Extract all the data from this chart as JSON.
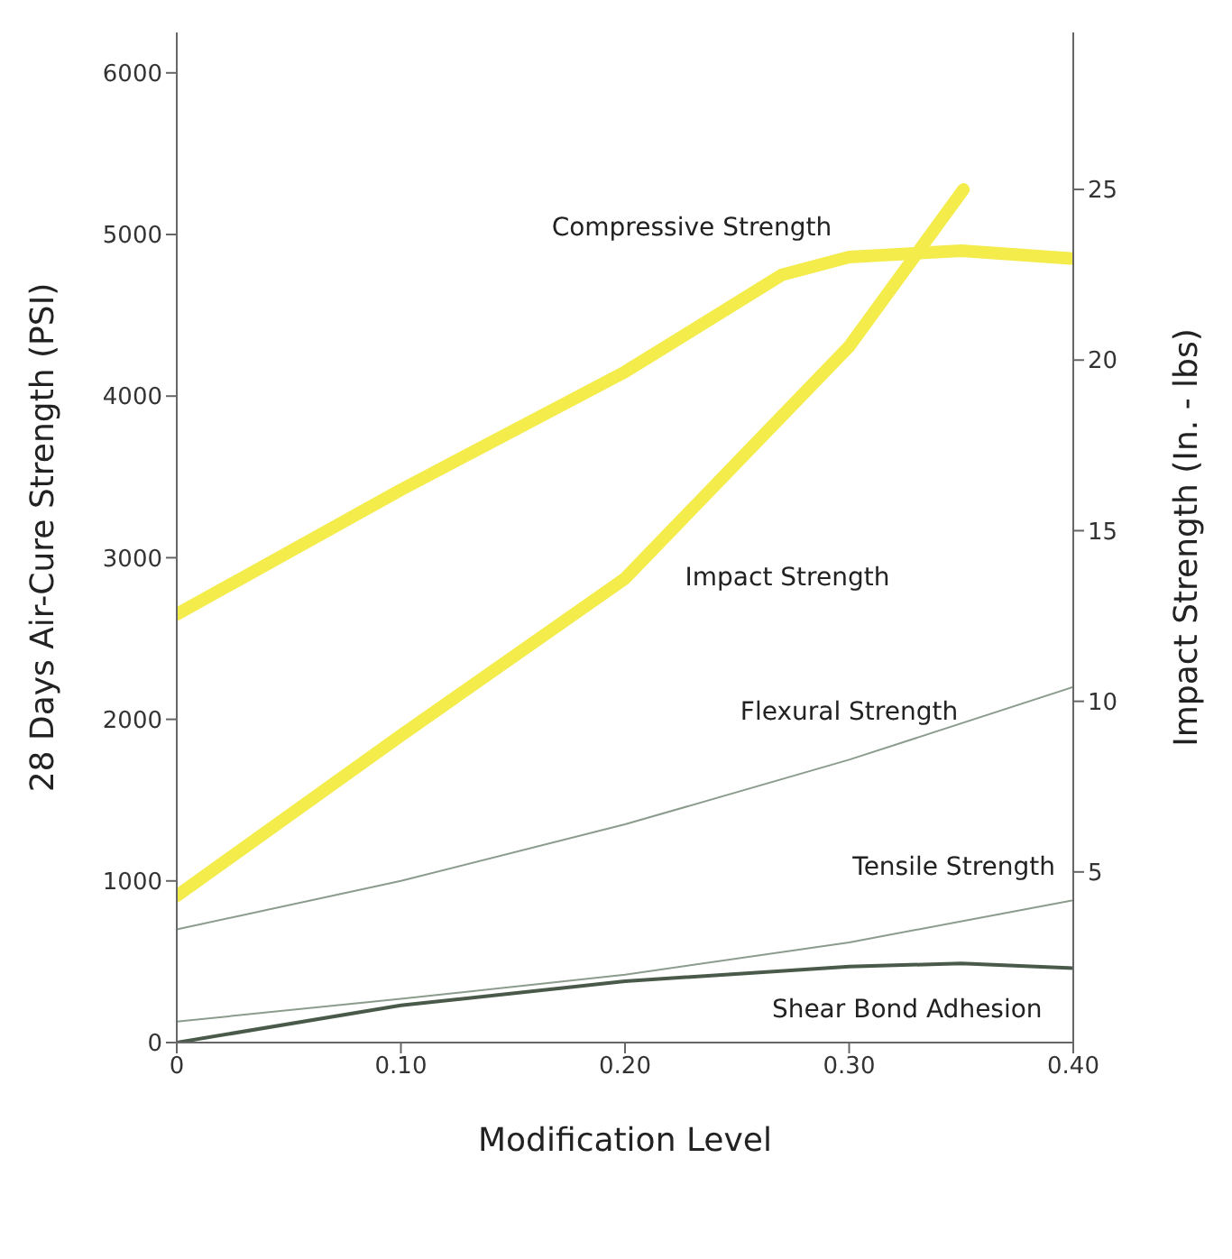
{
  "chart_data": {
    "type": "line",
    "xlabel": "Modification Level",
    "ylabel": "28 Days Air-Cure Strength (PSI)",
    "y2label": "Impact Strength (In. - lbs)",
    "xlim": [
      0,
      0.4
    ],
    "xticks": [
      0,
      {
        "value": 0.1,
        "label": "0.10"
      },
      {
        "value": 0.2,
        "label": "0.20"
      },
      {
        "value": 0.3,
        "label": "0.30"
      },
      {
        "value": 0.4,
        "label": "0.40"
      }
    ],
    "ylim": [
      0,
      6250
    ],
    "yticks": [
      0,
      1000,
      2000,
      3000,
      4000,
      5000,
      6000
    ],
    "y2lim": [
      0,
      29.6
    ],
    "y2ticks": [
      5,
      10,
      15,
      20,
      25
    ],
    "marker": "none",
    "line_style": "solid",
    "series": [
      {
        "name": "Compressive Strength",
        "color": "#f3ec4a",
        "x": [
          0,
          0.1,
          0.2,
          0.27,
          0.3,
          0.35,
          0.4
        ],
        "values": [
          2650,
          3420,
          4150,
          4750,
          4860,
          4900,
          4850
        ]
      },
      {
        "name": "Impact Strength",
        "color": "#f3ec4a",
        "axis": "y2",
        "x": [
          0,
          0.1,
          0.2,
          0.3,
          0.351
        ],
        "values": [
          4.3,
          9,
          13.6,
          20.4,
          25
        ]
      },
      {
        "name": "Flexural Strength",
        "color": "#8c9c8c",
        "x": [
          0,
          0.1,
          0.2,
          0.3,
          0.4
        ],
        "values": [
          700,
          1000,
          1350,
          1750,
          2200
        ]
      },
      {
        "name": "Tensile Strength",
        "color": "#8c9c8c",
        "x": [
          0,
          0.1,
          0.2,
          0.3,
          0.4
        ],
        "values": [
          130,
          270,
          420,
          620,
          880
        ]
      },
      {
        "name": "Shear Bond Adhesion",
        "color": "#4a5a4a",
        "x": [
          0,
          0.1,
          0.2,
          0.3,
          0.35,
          0.4
        ],
        "values": [
          0,
          230,
          380,
          470,
          490,
          460
        ]
      }
    ]
  }
}
